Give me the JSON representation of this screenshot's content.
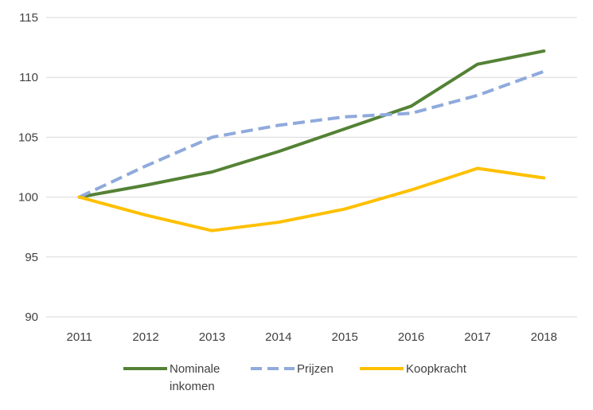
{
  "chart_data": {
    "type": "line",
    "title": "",
    "xlabel": "",
    "ylabel": "",
    "categories": [
      "2011",
      "2012",
      "2013",
      "2014",
      "2015",
      "2016",
      "2017",
      "2018"
    ],
    "ylim": [
      90,
      115
    ],
    "yticks": [
      90,
      95,
      100,
      105,
      110,
      115
    ],
    "grid": "horizontal",
    "legend_position": "bottom",
    "series": [
      {
        "name": "Nominale inkomen",
        "name_lines": [
          "Nominale",
          "inkomen"
        ],
        "color": "#548235",
        "style": "solid",
        "values": [
          100,
          101,
          102.1,
          103.8,
          105.7,
          107.6,
          111.1,
          112.2
        ]
      },
      {
        "name": "Prijzen",
        "name_lines": [
          "Prijzen"
        ],
        "color": "#8FAADC",
        "style": "dashed",
        "values": [
          100,
          102.6,
          105,
          106,
          106.7,
          107,
          108.5,
          110.5
        ]
      },
      {
        "name": "Koopkracht",
        "name_lines": [
          "Koopkracht"
        ],
        "color": "#FFC000",
        "style": "solid",
        "values": [
          100,
          98.5,
          97.2,
          97.9,
          99,
          100.6,
          102.4,
          101.6
        ]
      }
    ]
  }
}
